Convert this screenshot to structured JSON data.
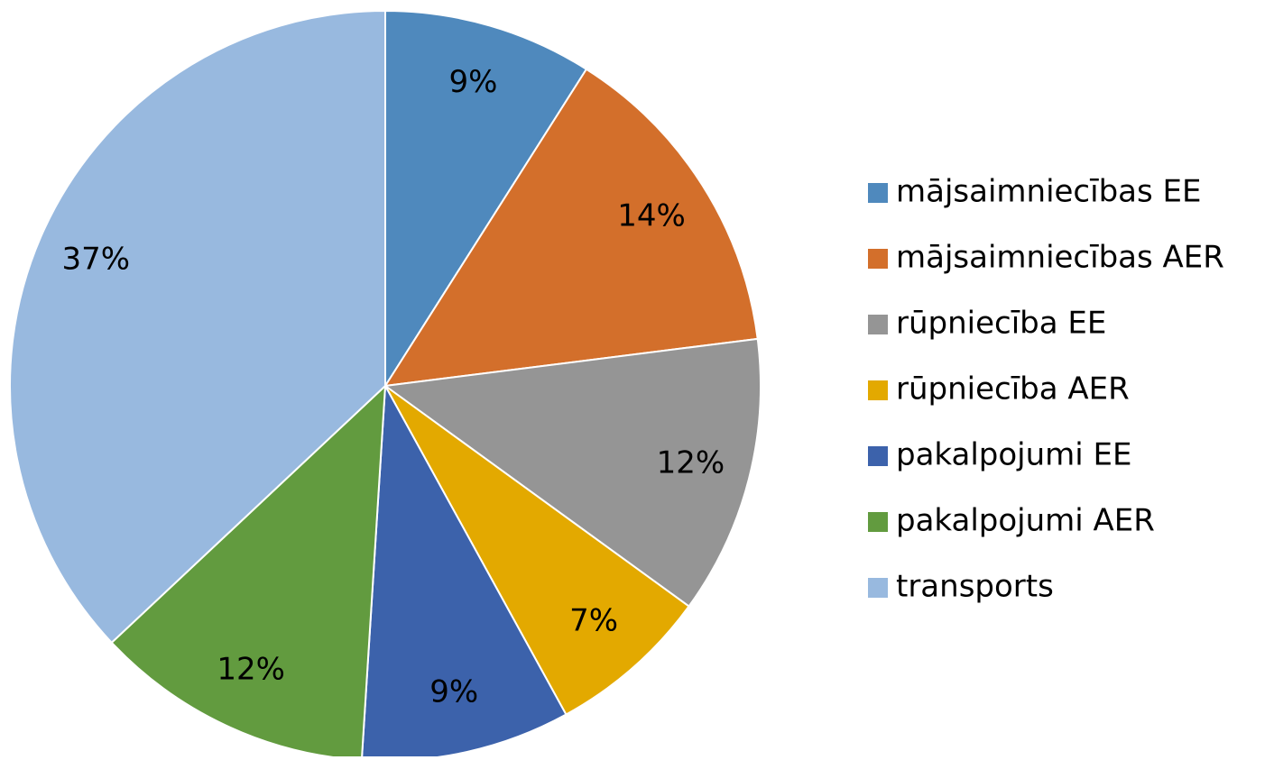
{
  "chart_data": {
    "type": "pie",
    "categories": [
      "mājsaimniecības EE",
      "mājsaimniecības AER",
      "rūpniecība EE",
      "rūpniecība AER",
      "pakalpojumi EE",
      "pakalpojumi AER",
      "transports"
    ],
    "values": [
      9,
      14,
      12,
      7,
      9,
      12,
      37
    ],
    "value_labels": [
      "9%",
      "14%",
      "12%",
      "7%",
      "9%",
      "12%",
      "37%"
    ],
    "colors": [
      "#4f89bd",
      "#d36f2b",
      "#959595",
      "#e3a900",
      "#3c62ab",
      "#629b3f",
      "#98b9df"
    ],
    "legend": "right"
  }
}
